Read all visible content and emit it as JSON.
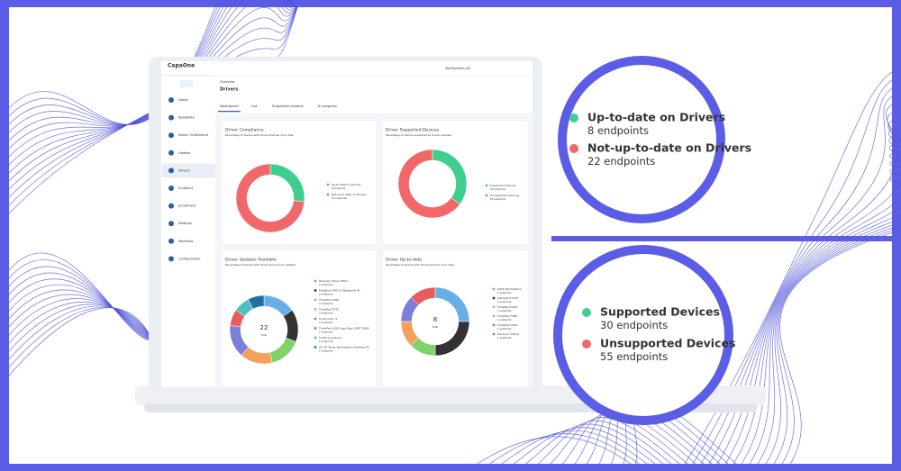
{
  "app": {
    "logo": "CapaOne",
    "account": "TeamSystems A/S",
    "breadcrumb": "Overview",
    "page_title": "Drivers",
    "nav": [
      "Home",
      "Reliability",
      "Admin OnDemand",
      "Update",
      "Drivers",
      "Endpoint",
      "Enrollment",
      "Settings",
      "Workflow",
      "Configuration"
    ],
    "active_nav": 4,
    "tabs": [
      "Dashboard",
      "List",
      "Supported models",
      "In progress"
    ],
    "active_tab": 0
  },
  "panels": [
    {
      "title": "Driver Compliance",
      "subtitle": "Percentage of devices with drivers that are up to date",
      "items": [
        {
          "name": "Up-to-date on Drivers",
          "value": 8,
          "label": "8 endpoints",
          "color": "#3ecf8e"
        },
        {
          "name": "Not-up-to-date on Drivers",
          "value": 22,
          "label": "22 endpoints",
          "color": "#f2686a"
        }
      ]
    },
    {
      "title": "Driver Supported Devices",
      "subtitle": "Percentage of devices supported by drivers updates",
      "items": [
        {
          "name": "Supported Devices",
          "value": 30,
          "label": "30 endpoints",
          "color": "#3ecf8e"
        },
        {
          "name": "Unsupported Devices",
          "value": 55,
          "label": "55 endpoints",
          "color": "#f2686a"
        }
      ]
    },
    {
      "title": "Driver Updates Available",
      "subtitle": "Percentage of devices with drivers that can be updated",
      "center": 22,
      "center_caption": "total",
      "items": [
        {
          "name": "Precision Tower 5810",
          "value": 2,
          "label": "2 endpoints",
          "color": "#6aaee8"
        },
        {
          "name": "EliteBook 840 G3 Notebook PC",
          "value": 2,
          "label": "2 endpoints",
          "color": "#333333"
        },
        {
          "name": "ThinkPad X260",
          "value": 2,
          "label": "2 endpoints",
          "color": "#7ed36b"
        },
        {
          "name": "ThinkPad T470",
          "value": 2,
          "label": "2 endpoints",
          "color": "#f5a05a"
        },
        {
          "name": "Surface Pro 4",
          "value": 2,
          "label": "2 endpoints",
          "color": "#7b7fd8"
        },
        {
          "name": "ThinkPad L390 Yoga Type 20NT 20NU",
          "value": 1,
          "label": "1 endpoints",
          "color": "#e85c5c"
        },
        {
          "name": "Surface Laptop 2",
          "value": 1,
          "label": "1 endpoints",
          "color": "#4bc0c0"
        },
        {
          "name": "Z2 G4 Tower Workstation Desktop PC",
          "value": 1,
          "label": "1 endpoints",
          "color": "#1f6f9f"
        }
      ]
    },
    {
      "title": "Driver Up-to-date",
      "subtitle": "Percentage of devices with drivers that are up to date",
      "center": 8,
      "center_caption": "total",
      "items": [
        {
          "name": "Z440 Workstation",
          "value": 2,
          "label": "2 endpoints",
          "color": "#6aaee8"
        },
        {
          "name": "Latitude E7470",
          "value": 2,
          "label": "2 endpoints",
          "color": "#333333"
        },
        {
          "name": "ThinkPad X260",
          "value": 1,
          "label": "1 endpoints",
          "color": "#7ed36b"
        },
        {
          "name": "ThinkPad T480",
          "value": 1,
          "label": "1 endpoints",
          "color": "#f5a05a"
        },
        {
          "name": "ThinkPad X240",
          "value": 1,
          "label": "1 endpoints",
          "color": "#7b7fd8"
        },
        {
          "name": "Precision T3610",
          "value": 1,
          "label": "1 endpoints",
          "color": "#e85c5c"
        }
      ]
    }
  ]
}
